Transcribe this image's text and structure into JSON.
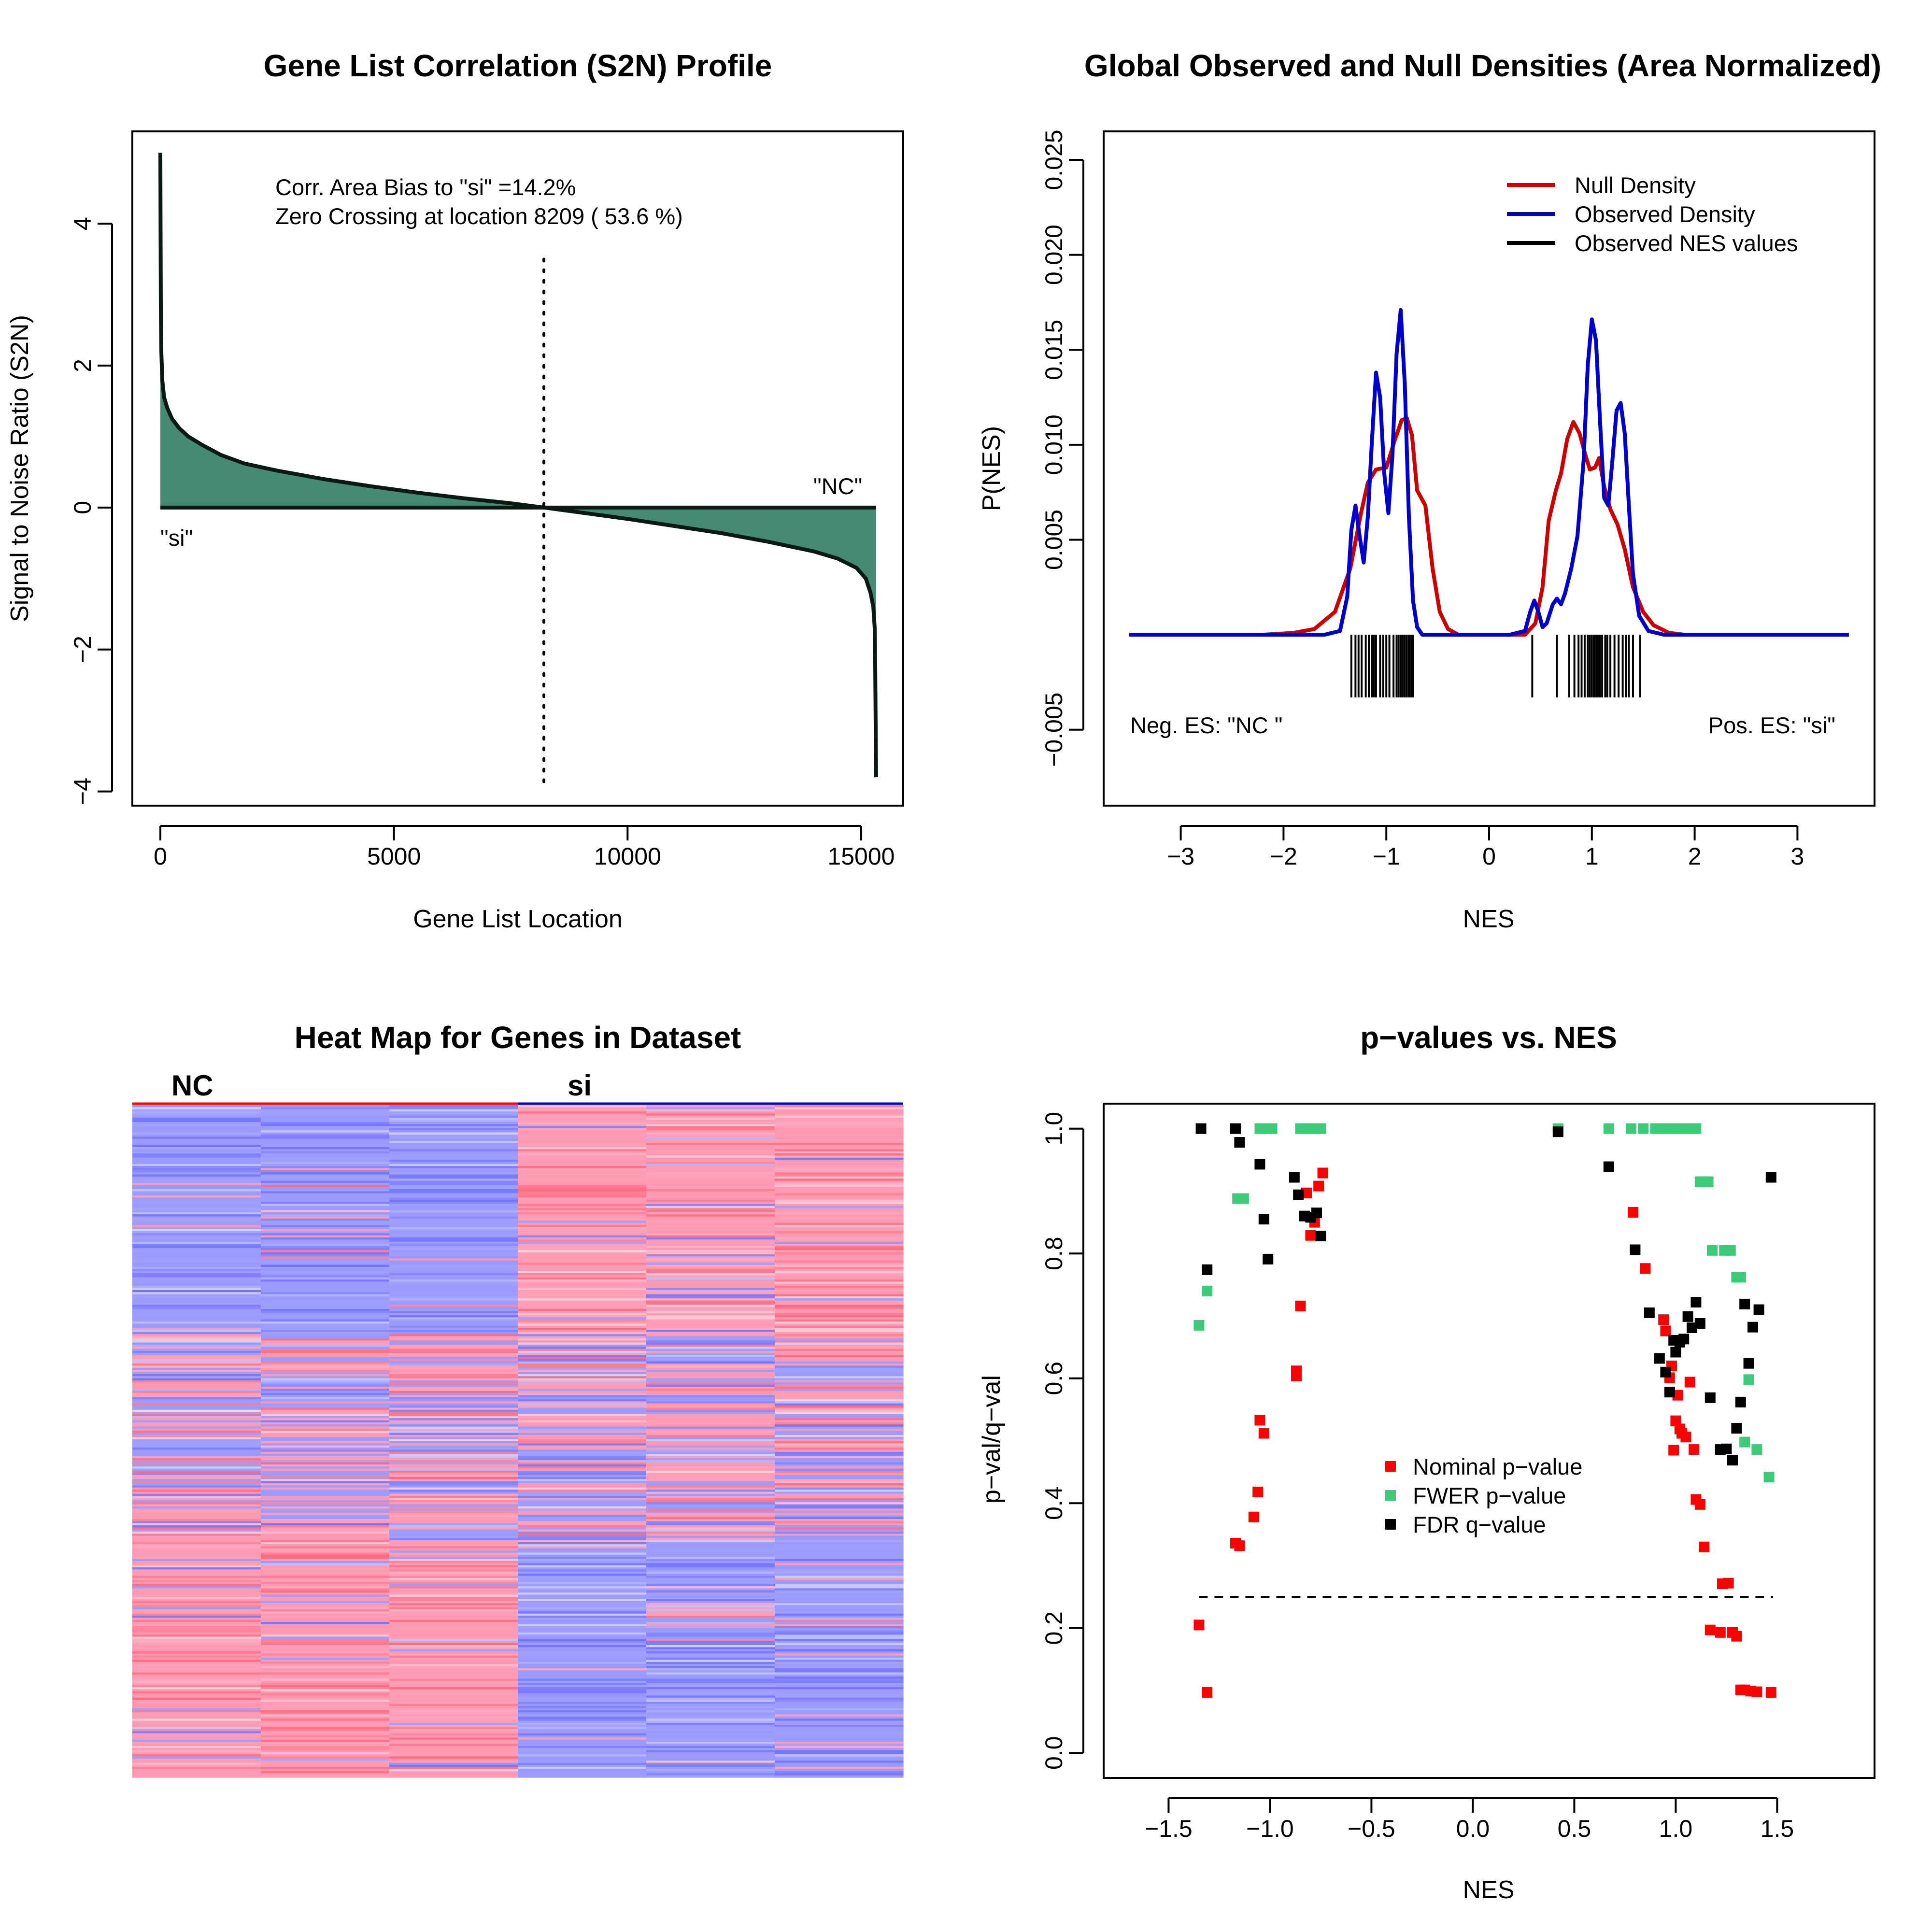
{
  "colors": {
    "s2n_fill": "#458B73",
    "null_density": "#CD0000",
    "observed_density": "#0000CD",
    "nominal": "#FF0000",
    "fwer": "#3DCB7A",
    "fdr": "#000000",
    "heat_blue": "#8F8FFF",
    "heat_red": "#FF8A9A"
  },
  "chart_data": [
    {
      "id": "s2n",
      "type": "area",
      "title": "Gene List Correlation (S2N) Profile",
      "xlabel": "Gene List Location",
      "ylabel": "Signal to Noise Ratio (S2N)",
      "xlim": [
        -600,
        15900
      ],
      "ylim": [
        -4.2,
        5.3
      ],
      "xticks": [
        0,
        5000,
        10000,
        15000
      ],
      "yticks": [
        -4,
        -2,
        0,
        2,
        4
      ],
      "x": [
        0,
        5,
        10,
        20,
        40,
        80,
        150,
        250,
        400,
        600,
        900,
        1300,
        1800,
        2500,
        3500,
        4500,
        5500,
        6500,
        7500,
        8209,
        9000,
        10000,
        11000,
        12000,
        13000,
        14000,
        14500,
        14900,
        15100,
        15200,
        15260,
        15290,
        15300,
        15310,
        15320
      ],
      "y": [
        5.0,
        3.8,
        2.8,
        2.2,
        1.8,
        1.55,
        1.4,
        1.25,
        1.12,
        1.0,
        0.88,
        0.74,
        0.62,
        0.52,
        0.4,
        0.3,
        0.21,
        0.13,
        0.06,
        0.0,
        -0.07,
        -0.16,
        -0.26,
        -0.36,
        -0.48,
        -0.62,
        -0.72,
        -0.85,
        -1.0,
        -1.2,
        -1.4,
        -1.7,
        -2.2,
        -3.0,
        -3.8
      ],
      "zero_crossing": 8209,
      "annotations": [
        "Corr. Area Bias to \"si\" =14.2%",
        "Zero Crossing at location  8209  ( 53.6  %)"
      ],
      "label_left": "\"si\"",
      "label_right": "\"NC\""
    },
    {
      "id": "densities",
      "type": "line",
      "title": "Global Observed and Null Densities (Area Normalized)",
      "xlabel": "NES",
      "ylabel": "P(NES)",
      "xlim": [
        -3.75,
        3.75
      ],
      "ylim": [
        -0.009,
        0.0265
      ],
      "xticks": [
        -3,
        -2,
        -1,
        0,
        1,
        2,
        3
      ],
      "yticks": [
        -0.005,
        0.005,
        0.01,
        0.015,
        0.02,
        0.025
      ],
      "ytick_labels": [
        "−0.005",
        "0.005",
        "0.010",
        "0.015",
        "0.020",
        "0.025"
      ],
      "series": [
        {
          "name": "Null Density",
          "x": [
            -3.5,
            -2.2,
            -1.9,
            -1.7,
            -1.5,
            -1.35,
            -1.25,
            -1.18,
            -1.1,
            -1.0,
            -0.92,
            -0.85,
            -0.8,
            -0.75,
            -0.7,
            -0.62,
            -0.55,
            -0.48,
            -0.4,
            -0.3,
            0.0,
            0.35,
            0.45,
            0.52,
            0.58,
            0.65,
            0.7,
            0.76,
            0.82,
            0.88,
            0.93,
            0.98,
            1.03,
            1.07,
            1.12,
            1.18,
            1.25,
            1.32,
            1.4,
            1.5,
            1.6,
            1.75,
            1.9,
            3.5
          ],
          "y": [
            0.0,
            0.0,
            0.0001,
            0.0003,
            0.0012,
            0.0035,
            0.0063,
            0.008,
            0.0087,
            0.0088,
            0.0102,
            0.0113,
            0.0114,
            0.0105,
            0.0076,
            0.0068,
            0.0035,
            0.0012,
            0.0003,
            0.0,
            0.0,
            0.0,
            0.0006,
            0.0025,
            0.006,
            0.0076,
            0.0085,
            0.0103,
            0.0112,
            0.0106,
            0.0096,
            0.0087,
            0.0088,
            0.0093,
            0.0078,
            0.0066,
            0.0058,
            0.0045,
            0.0025,
            0.0012,
            0.0005,
            0.0001,
            0.0,
            0.0
          ]
        },
        {
          "name": "Observed Density",
          "x": [
            -3.5,
            -1.6,
            -1.45,
            -1.38,
            -1.34,
            -1.3,
            -1.26,
            -1.22,
            -1.18,
            -1.14,
            -1.1,
            -1.06,
            -1.02,
            -0.98,
            -0.94,
            -0.9,
            -0.86,
            -0.82,
            -0.78,
            -0.74,
            -0.7,
            -0.65,
            -0.55,
            0.2,
            0.35,
            0.4,
            0.44,
            0.48,
            0.52,
            0.56,
            0.62,
            0.66,
            0.7,
            0.74,
            0.8,
            0.86,
            0.92,
            0.96,
            1.0,
            1.04,
            1.08,
            1.12,
            1.16,
            1.2,
            1.24,
            1.28,
            1.32,
            1.36,
            1.4,
            1.46,
            1.55,
            1.7,
            3.5
          ],
          "y": [
            0.0,
            0.0,
            0.0002,
            0.002,
            0.0055,
            0.0068,
            0.0052,
            0.0038,
            0.0062,
            0.0102,
            0.0138,
            0.0125,
            0.0085,
            0.0064,
            0.0095,
            0.0148,
            0.0171,
            0.0132,
            0.0062,
            0.0018,
            0.0004,
            0.0,
            0.0,
            0.0,
            0.0002,
            0.0012,
            0.0018,
            0.0012,
            0.0004,
            0.0006,
            0.0016,
            0.0019,
            0.0016,
            0.0022,
            0.0035,
            0.0052,
            0.0092,
            0.0142,
            0.0166,
            0.0155,
            0.0112,
            0.0072,
            0.0068,
            0.0092,
            0.0118,
            0.0122,
            0.0106,
            0.0068,
            0.0032,
            0.001,
            0.0002,
            0.0,
            0.0
          ]
        }
      ],
      "rug_name": "Observed NES values",
      "rug": [
        -1.34,
        -1.3,
        -1.27,
        -1.24,
        -1.2,
        -1.17,
        -1.14,
        -1.12,
        -1.1,
        -1.06,
        -1.03,
        -1.0,
        -0.97,
        -0.93,
        -0.9,
        -0.88,
        -0.86,
        -0.84,
        -0.82,
        -0.8,
        -0.78,
        -0.76,
        -0.74,
        0.42,
        0.66,
        0.78,
        0.83,
        0.87,
        0.9,
        0.93,
        0.96,
        0.98,
        1.0,
        1.02,
        1.04,
        1.06,
        1.08,
        1.1,
        1.13,
        1.15,
        1.18,
        1.22,
        1.26,
        1.3,
        1.33,
        1.36,
        1.4,
        1.47
      ],
      "annotations": [
        "Neg. ES: \"NC \"",
        "Pos. ES: \"si\""
      ]
    },
    {
      "id": "heatmap",
      "type": "heatmap",
      "title": "Heat Map for Genes in Dataset",
      "groups": [
        "NC",
        "si"
      ],
      "columns": 6
    },
    {
      "id": "pvals",
      "type": "scatter",
      "title": "p−values vs. NES",
      "xlabel": "NES",
      "ylabel": "p−val/q−val",
      "xlim": [
        -1.82,
        1.98
      ],
      "ylim": [
        -0.04,
        1.04
      ],
      "xticks": [
        -1.5,
        -1.0,
        -0.5,
        0.0,
        0.5,
        1.0,
        1.5
      ],
      "xtick_labels": [
        "−1.5",
        "−1.0",
        "−0.5",
        "0.0",
        "0.5",
        "1.0",
        "1.5"
      ],
      "yticks": [
        0.0,
        0.2,
        0.4,
        0.6,
        0.8,
        1.0
      ],
      "ytick_labels": [
        "0.0",
        "0.2",
        "0.4",
        "0.6",
        "0.8",
        "1.0"
      ],
      "threshold": 0.25,
      "threshold_range": [
        -1.35,
        1.48
      ],
      "series": [
        {
          "name": "Nominal p−value",
          "x": [
            -1.35,
            -1.31,
            -1.17,
            -1.15,
            -1.08,
            -1.06,
            -1.05,
            -1.03,
            -0.87,
            -0.87,
            -0.85,
            -0.82,
            -0.8,
            -0.78,
            -0.76,
            -0.74,
            0.79,
            0.85,
            0.94,
            0.95,
            0.97,
            0.98,
            0.99,
            1.0,
            1.01,
            1.02,
            1.03,
            1.05,
            1.07,
            1.09,
            1.1,
            1.12,
            1.14,
            1.17,
            1.22,
            1.23,
            1.26,
            1.28,
            1.3,
            1.32,
            1.34,
            1.37,
            1.4,
            1.47
          ],
          "y": [
            0.205,
            0.097,
            0.336,
            0.332,
            0.378,
            0.418,
            0.533,
            0.512,
            0.604,
            0.612,
            0.716,
            0.897,
            0.829,
            0.85,
            0.908,
            0.929,
            0.866,
            0.776,
            0.694,
            0.676,
            0.601,
            0.62,
            0.485,
            0.532,
            0.573,
            0.519,
            0.512,
            0.506,
            0.594,
            0.486,
            0.406,
            0.398,
            0.33,
            0.197,
            0.193,
            0.271,
            0.272,
            0.193,
            0.187,
            0.101,
            0.101,
            0.099,
            0.098,
            0.097
          ]
        },
        {
          "name": "FWER p−value",
          "x": [
            -1.35,
            -1.31,
            -1.16,
            -1.13,
            -1.05,
            -1.03,
            -1.01,
            -0.99,
            -0.85,
            -0.83,
            -0.81,
            -0.79,
            -0.77,
            -0.75,
            0.42,
            0.67,
            0.78,
            0.84,
            0.9,
            0.93,
            0.96,
            0.99,
            1.02,
            1.05,
            1.08,
            1.1,
            1.12,
            1.14,
            1.16,
            1.18,
            1.24,
            1.27,
            1.3,
            1.32,
            1.34,
            1.36,
            1.4,
            1.46
          ],
          "y": [
            0.685,
            0.74,
            0.888,
            0.888,
            1.0,
            1.0,
            1.0,
            1.0,
            1.0,
            1.0,
            1.0,
            1.0,
            1.0,
            1.0,
            1.0,
            1.0,
            1.0,
            1.0,
            1.0,
            1.0,
            1.0,
            1.0,
            1.0,
            1.0,
            1.0,
            1.0,
            0.915,
            0.915,
            0.915,
            0.805,
            0.805,
            0.805,
            0.762,
            0.762,
            0.498,
            0.598,
            0.486,
            0.442
          ]
        },
        {
          "name": "FDR q−value",
          "x": [
            -1.34,
            -1.31,
            -1.17,
            -1.15,
            -1.05,
            -1.03,
            -1.01,
            -0.88,
            -0.86,
            -0.83,
            -0.8,
            -0.77,
            -0.75,
            0.42,
            0.67,
            0.8,
            0.87,
            0.92,
            0.95,
            0.97,
            0.99,
            1.0,
            1.02,
            1.04,
            1.06,
            1.08,
            1.1,
            1.12,
            1.17,
            1.22,
            1.25,
            1.28,
            1.3,
            1.32,
            1.34,
            1.36,
            1.38,
            1.41,
            1.47
          ],
          "y": [
            1.0,
            0.774,
            1.0,
            0.978,
            0.943,
            0.855,
            0.791,
            0.922,
            0.894,
            0.86,
            0.858,
            0.865,
            0.828,
            0.995,
            0.939,
            0.806,
            0.705,
            0.632,
            0.61,
            0.578,
            0.661,
            0.642,
            0.658,
            0.663,
            0.699,
            0.681,
            0.722,
            0.688,
            0.569,
            0.486,
            0.487,
            0.469,
            0.52,
            0.562,
            0.719,
            0.624,
            0.682,
            0.71,
            0.922
          ]
        }
      ]
    }
  ]
}
